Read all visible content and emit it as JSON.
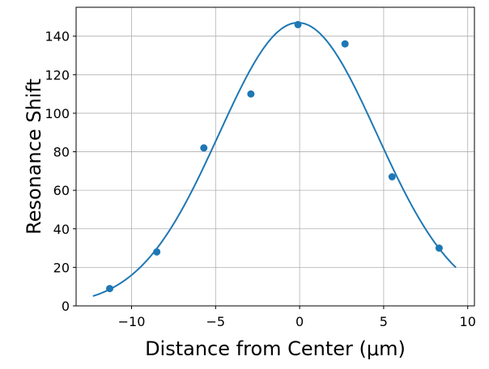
{
  "chart_data": {
    "type": "scatter",
    "xlabel": "Distance from Center (μm)",
    "ylabel": "Resonance Shift",
    "xlim": [
      -13.3,
      10.4
    ],
    "ylim": [
      0,
      155
    ],
    "xticks": [
      -10,
      -5,
      0,
      5,
      10
    ],
    "xtick_labels": [
      "−10",
      "−5",
      "0",
      "5",
      "10"
    ],
    "yticks": [
      0,
      20,
      40,
      60,
      80,
      100,
      120,
      140
    ],
    "ytick_labels": [
      "0",
      "20",
      "40",
      "60",
      "80",
      "100",
      "120",
      "140"
    ],
    "grid": true,
    "series": [
      {
        "kind": "points",
        "x": [
          -11.3,
          -8.5,
          -5.7,
          -2.9,
          -0.1,
          2.7,
          5.5,
          8.3
        ],
        "y": [
          9,
          28,
          82,
          110,
          146,
          136,
          67,
          30
        ]
      },
      {
        "kind": "fitted-line",
        "function": "gaussian",
        "amplitude": 147,
        "center": -0.1,
        "sigma": 4.7,
        "x_range": [
          -12.3,
          9.3
        ]
      }
    ],
    "color": "#1f77b4"
  }
}
